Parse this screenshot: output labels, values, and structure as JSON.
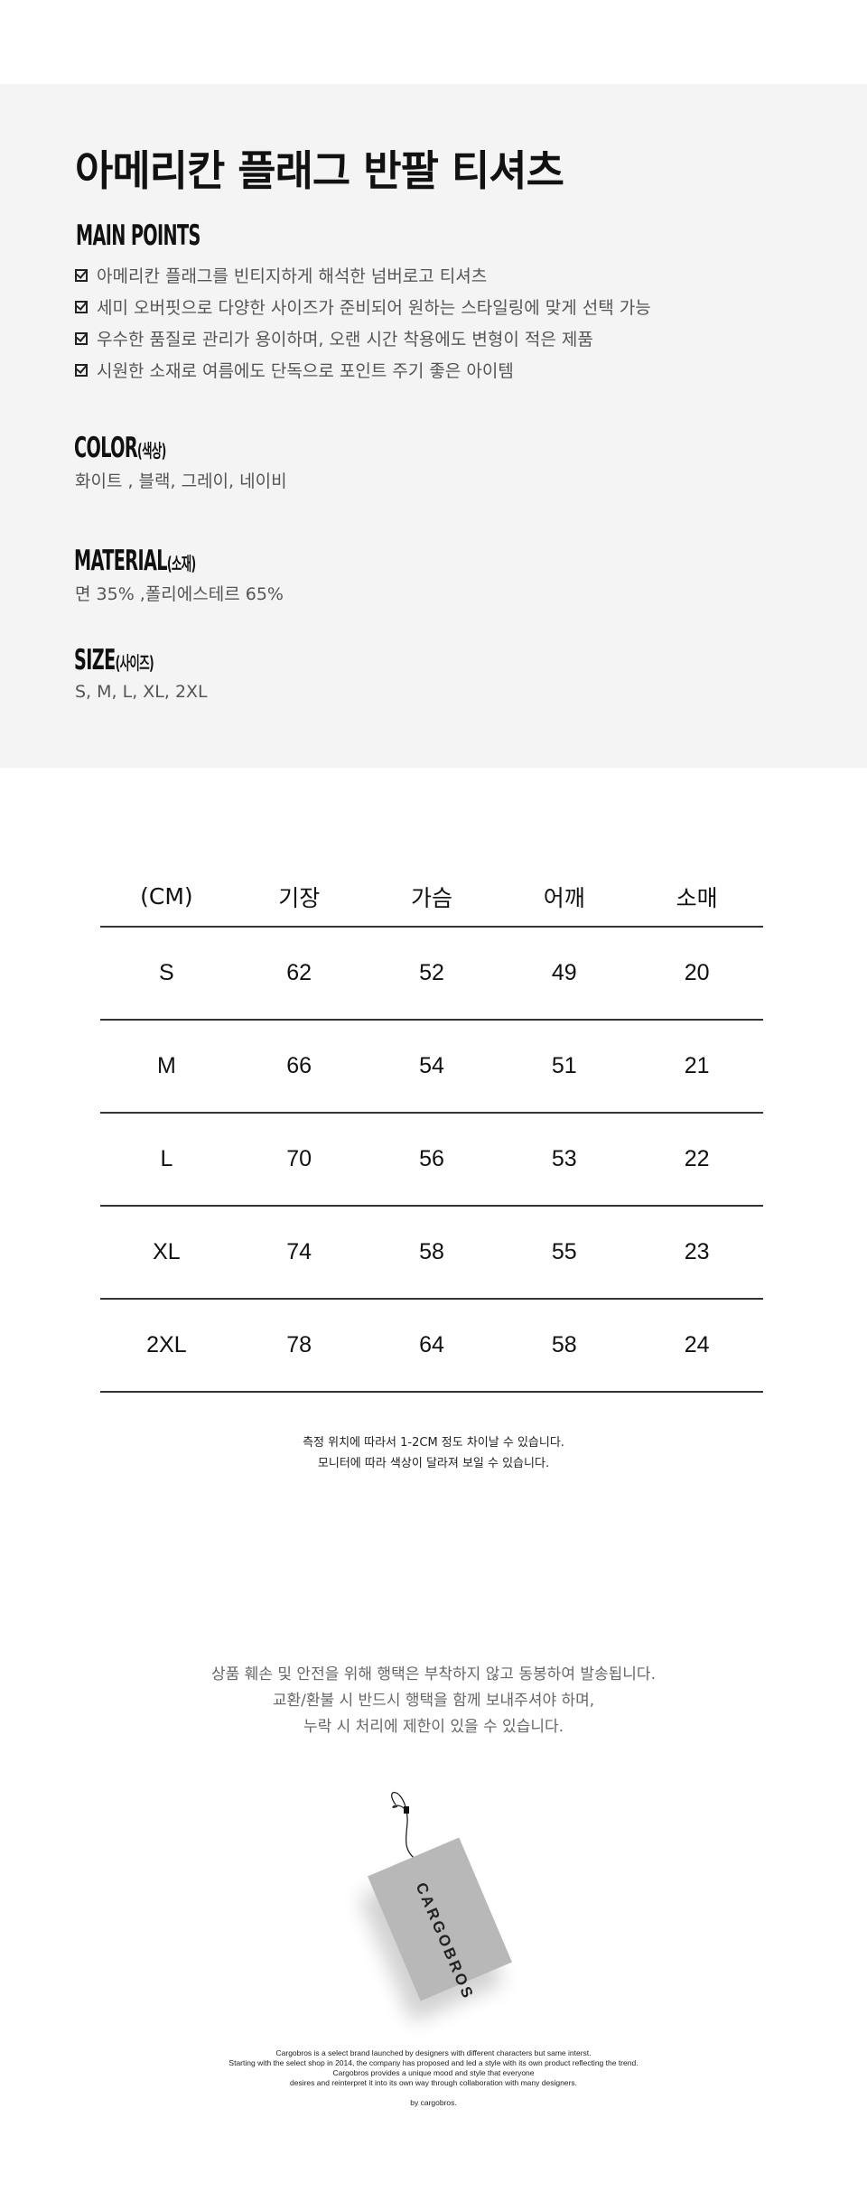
{
  "product": {
    "title": "아메리칸 플래그 반팔 티셔츠"
  },
  "main_points": {
    "heading": "MAIN POINTS",
    "items": [
      "아메리칸 플래그를 빈티지하게 해석한 넘버로고 티셔츠",
      "세미 오버핏으로 다양한 사이즈가 준비되어 원하는 스타일링에 맞게 선택 가능",
      "우수한 품질로 관리가 용이하며, 오랜 시간 착용에도 변형이 적은 제품",
      "시원한 소재로 여름에도 단독으로 포인트 주기 좋은 아이템"
    ]
  },
  "color": {
    "heading": "COLOR",
    "sub": "(색상)",
    "value": "화이트 , 블랙, 그레이, 네이비"
  },
  "material": {
    "heading": "MATERIAL",
    "sub": "(소재)",
    "value": "면 35% ,폴리에스테르 65%"
  },
  "size": {
    "heading": "SIZE",
    "sub": "(사이즈)",
    "value": "S, M, L, XL, 2XL"
  },
  "size_table": {
    "headers": [
      "(CM)",
      "기장",
      "가슴",
      "어깨",
      "소매"
    ],
    "rows": [
      [
        "S",
        "62",
        "52",
        "49",
        "20"
      ],
      [
        "M",
        "66",
        "54",
        "51",
        "21"
      ],
      [
        "L",
        "70",
        "56",
        "53",
        "22"
      ],
      [
        "XL",
        "74",
        "58",
        "55",
        "23"
      ],
      [
        "2XL",
        "78",
        "64",
        "58",
        "24"
      ]
    ]
  },
  "notes": [
    "측정 위치에 따라서 1-2CM 정도 차이날 수 있습니다.",
    "모니터에 따라 색상이 달라져 보일 수 있습니다."
  ],
  "tag_notice": [
    "상품 훼손 및 안전을 위해 행택은 부착하지 않고 동봉하여 발송됩니다.",
    "교환/환불 시 반드시 행택을 함께 보내주셔야 하며,",
    "누락 시 처리에 제한이 있을 수 있습니다."
  ],
  "tag_brand": "CARGOBROS",
  "footer": [
    "Cargobros is a select brand launched by designers with different characters but same interst.",
    "Starting with the select shop in 2014, the company has proposed and led a style with its own product reflecting the trend.",
    "Cargobros provides a unique mood and style that everyone",
    "desires and reinterpret it into its own way through collaboration with many designers.",
    "by cargobros."
  ]
}
